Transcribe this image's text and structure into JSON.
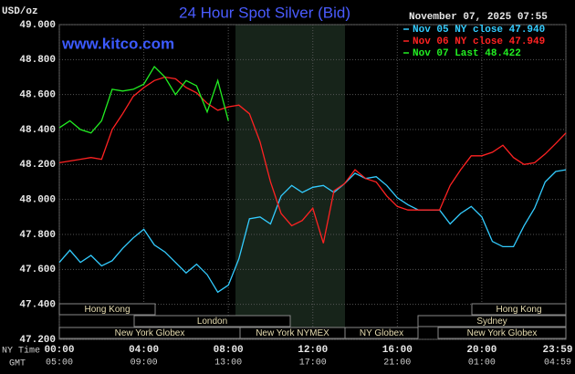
{
  "chart_data": {
    "type": "line",
    "title": "24 Hour Spot Silver (Bid)",
    "y_label": "USD/oz",
    "timestamp": "November 07, 2025 07:55",
    "watermark": "www.kitco.com",
    "x_row_label": "NY Time",
    "x2_row_label": "GMT",
    "x": [
      0,
      0.5,
      1,
      1.5,
      2,
      2.5,
      3,
      3.5,
      4,
      4.5,
      5,
      5.5,
      6,
      6.5,
      7,
      7.5,
      8,
      8.5,
      9,
      9.5,
      10,
      10.5,
      11,
      11.5,
      12,
      12.5,
      13,
      13.5,
      14,
      14.5,
      15,
      15.5,
      16,
      16.5,
      17,
      17.5,
      18,
      18.5,
      19,
      19.5,
      20,
      20.5,
      21,
      21.5,
      22,
      22.5,
      23,
      23.5,
      23.98
    ],
    "series": [
      {
        "name": "Nov 05 NY close 47.940",
        "color": "#33ccff",
        "values": [
          47.64,
          47.71,
          47.64,
          47.68,
          47.62,
          47.65,
          47.72,
          47.78,
          47.83,
          47.74,
          47.7,
          47.64,
          47.58,
          47.63,
          47.57,
          47.47,
          47.51,
          47.66,
          47.89,
          47.9,
          47.86,
          48.02,
          48.08,
          48.04,
          48.07,
          48.08,
          48.04,
          48.09,
          48.15,
          48.12,
          48.13,
          48.08,
          48.01,
          47.97,
          47.94,
          47.94,
          47.94,
          47.86,
          47.92,
          47.96,
          47.9,
          47.76,
          47.73,
          47.73,
          47.85,
          47.95,
          48.1,
          48.16,
          48.17
        ]
      },
      {
        "name": "Nov 06 NY close 47.949",
        "color": "#ff2222",
        "values": [
          48.21,
          48.22,
          48.23,
          48.24,
          48.23,
          48.4,
          48.49,
          48.59,
          48.64,
          48.68,
          48.7,
          48.69,
          48.64,
          48.61,
          48.55,
          48.51,
          48.53,
          48.54,
          48.49,
          48.33,
          48.1,
          47.92,
          47.85,
          47.88,
          47.95,
          47.75,
          48.05,
          48.09,
          48.17,
          48.12,
          48.1,
          48.02,
          47.96,
          47.94,
          47.94,
          47.94,
          47.94,
          48.08,
          48.17,
          48.25,
          48.25,
          48.27,
          48.31,
          48.24,
          48.2,
          48.21,
          48.26,
          48.32,
          48.38
        ]
      },
      {
        "name": "Nov 07 Last 48.422",
        "color": "#22ee22",
        "values": [
          48.41,
          48.45,
          48.4,
          48.38,
          48.45,
          48.63,
          48.62,
          48.63,
          48.66,
          48.76,
          48.7,
          48.6,
          48.68,
          48.65,
          48.5,
          48.68,
          48.45,
          null,
          null,
          null,
          null,
          null,
          null,
          null,
          null,
          null,
          null,
          null,
          null,
          null,
          null,
          null,
          null,
          null,
          null,
          null,
          null,
          null,
          null,
          null,
          null,
          null,
          null,
          null,
          null,
          null,
          null,
          null,
          null
        ]
      }
    ],
    "xlim": [
      0,
      23.98
    ],
    "xticks": [
      {
        "value": 0,
        "label": "00:00"
      },
      {
        "value": 4,
        "label": "04:00"
      },
      {
        "value": 8,
        "label": "08:00"
      },
      {
        "value": 12,
        "label": "12:00"
      },
      {
        "value": 16,
        "label": "16:00"
      },
      {
        "value": 20,
        "label": "20:00"
      },
      {
        "value": 23.98,
        "label": "23:59"
      }
    ],
    "x2_labels": [
      "05:00",
      "09:00",
      "13:00",
      "17:00",
      "21:00",
      "01:00",
      "04:59"
    ],
    "ylim": [
      47.2,
      49
    ],
    "yticks": [
      {
        "value": 47.2,
        "label": "47.200"
      },
      {
        "value": 47.4,
        "label": "47.400"
      },
      {
        "value": 47.6,
        "label": "47.600"
      },
      {
        "value": 47.8,
        "label": "47.800"
      },
      {
        "value": 48,
        "label": "48.000"
      },
      {
        "value": 48.2,
        "label": "48.200"
      },
      {
        "value": 48.4,
        "label": "48.400"
      },
      {
        "value": 48.6,
        "label": "48.600"
      },
      {
        "value": 48.8,
        "label": "48.800"
      },
      {
        "value": 49,
        "label": "49.000"
      }
    ],
    "grid": true,
    "sessions": [
      "Hong Kong",
      "Hong Kong",
      "London",
      "Sydney",
      "New York Globex",
      "New York NYMEX",
      "NY Globex",
      "New York Globex"
    ]
  }
}
